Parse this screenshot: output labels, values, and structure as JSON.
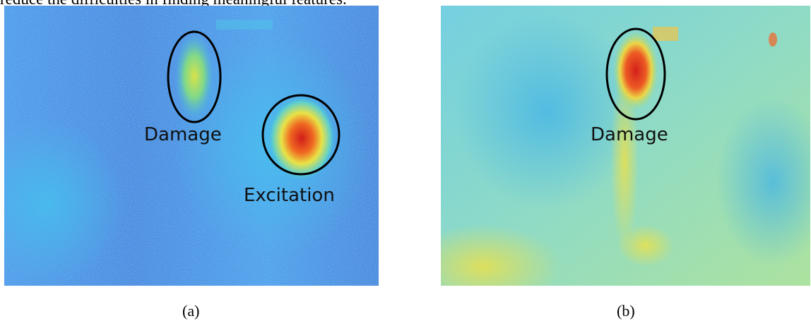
{
  "text_above": "reduce the difficulties in finding meaningful features.",
  "figure": {
    "panel_a": {
      "caption": "(a)",
      "labels": {
        "damage": "Damage",
        "excitation": "Excitation"
      }
    },
    "panel_b": {
      "caption": "(b)",
      "labels": {
        "damage": "Damage"
      }
    }
  },
  "colors": {
    "map_blue": "#3a78e0",
    "map_cyan": "#3ec0ea",
    "map_green": "#8fdc6a",
    "map_yellow": "#e8e24a",
    "map_red": "#d7261b",
    "ellipse": "#000000"
  }
}
